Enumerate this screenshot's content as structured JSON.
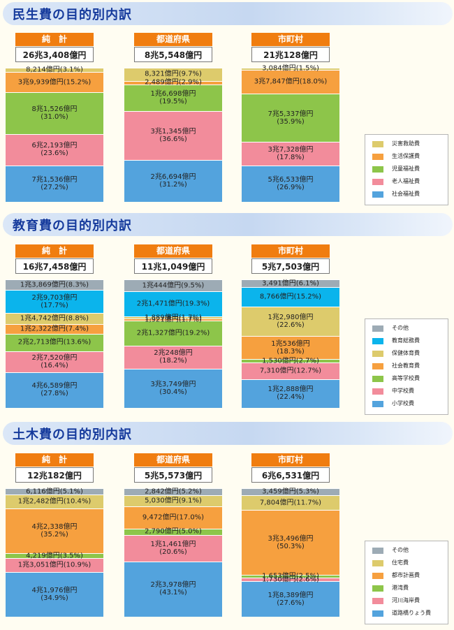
{
  "colors": {
    "gray": "#9dabb5",
    "blue": "#53a3dd",
    "cyan": "#0bb4ec",
    "yellow": "#ddcb6c",
    "orange": "#f6a03f",
    "green": "#8dc54a",
    "pink": "#f28c9b"
  },
  "chart_data": [
    {
      "type": "bar",
      "title": "民生費の目的別内訳",
      "categories": [
        "純　計",
        "都道府県",
        "市町村"
      ],
      "totals": [
        "26兆3,408億円",
        "8兆5,548億円",
        "21兆128億円"
      ],
      "series": [
        {
          "name": "社会福祉費",
          "color": "blue",
          "values": [
            27.2,
            31.2,
            26.9
          ],
          "labels": [
            "7兆1,536億円\n(27.2%)",
            "2兆6,694億円\n(31.2%)",
            "5兆6,533億円\n(26.9%)"
          ]
        },
        {
          "name": "老人福祉費",
          "color": "pink",
          "values": [
            23.6,
            36.6,
            17.8
          ],
          "labels": [
            "6兆2,193億円\n(23.6%)",
            "3兆1,345億円\n(36.6%)",
            "3兆7,328億円\n(17.8%)"
          ]
        },
        {
          "name": "児童福祉費",
          "color": "green",
          "values": [
            31.0,
            19.5,
            35.9
          ],
          "labels": [
            "8兆1,526億円\n(31.0%)",
            "1兆6,698億円\n(19.5%)",
            "7兆5,337億円\n(35.9%)"
          ]
        },
        {
          "name": "生活保護費",
          "color": "orange",
          "values": [
            15.2,
            2.9,
            18.0
          ],
          "labels": [
            "3兆9,939億円(15.2%)",
            "2,489億円(2.9%)",
            "3兆7,847億円(18.0%)"
          ]
        },
        {
          "name": "災害救助費",
          "color": "yellow",
          "values": [
            3.1,
            9.7,
            1.5
          ],
          "labels": [
            "8,214億円(3.1%)",
            "8,321億円(9.7%)",
            "3,084億円(1.5%)"
          ]
        }
      ],
      "legend_order": [
        "災害救助費",
        "生活保護費",
        "児童福祉費",
        "老人福祉費",
        "社会福祉費"
      ]
    },
    {
      "type": "bar",
      "title": "教育費の目的別内訳",
      "categories": [
        "純　計",
        "都道府県",
        "市町村"
      ],
      "totals": [
        "16兆7,458億円",
        "11兆1,049億円",
        "5兆7,503億円"
      ],
      "series": [
        {
          "name": "小学校費",
          "color": "blue",
          "values": [
            27.8,
            30.4,
            22.4
          ],
          "labels": [
            "4兆6,589億円\n(27.8%)",
            "3兆3,749億円\n(30.4%)",
            "1兆2,888億円\n(22.4%)"
          ]
        },
        {
          "name": "中学校費",
          "color": "pink",
          "values": [
            16.4,
            18.2,
            12.7
          ],
          "labels": [
            "2兆7,520億円\n(16.4%)",
            "2兆248億円\n(18.2%)",
            "7,310億円(12.7%)"
          ]
        },
        {
          "name": "高等学校費",
          "color": "green",
          "values": [
            13.6,
            19.2,
            2.7
          ],
          "labels": [
            "2兆2,713億円(13.6%)",
            "2兆1,327億円(19.2%)",
            "1,530億円(2.7%)"
          ]
        },
        {
          "name": "社会教育費",
          "color": "orange",
          "values": [
            7.4,
            1.7,
            18.3
          ],
          "labels": [
            "1兆2,322億円(7.4%)",
            "1,921億円(1.7%)",
            "1兆536億円\n(18.3%)"
          ]
        },
        {
          "name": "保健体育費",
          "color": "yellow",
          "values": [
            8.8,
            1.7,
            22.6
          ],
          "labels": [
            "1兆4,742億円(8.8%)",
            "1,889億円(1.7%)",
            "1兆2,980億円\n(22.6%)"
          ]
        },
        {
          "name": "教育総務費",
          "color": "cyan",
          "values": [
            17.7,
            19.3,
            15.2
          ],
          "labels": [
            "2兆9,703億円\n(17.7%)",
            "2兆1,471億円(19.3%)",
            "8,766億円(15.2%)"
          ]
        },
        {
          "name": "その他",
          "color": "gray",
          "values": [
            8.3,
            9.5,
            6.1
          ],
          "labels": [
            "1兆3,869億円(8.3%)",
            "1兆444億円(9.5%)",
            "3,491億円(6.1%)"
          ]
        }
      ],
      "legend_order": [
        "その他",
        "教育総務費",
        "保健体育費",
        "社会教育費",
        "高等学校費",
        "中学校費",
        "小学校費"
      ]
    },
    {
      "type": "bar",
      "title": "土木費の目的別内訳",
      "categories": [
        "純　計",
        "都道府県",
        "市町村"
      ],
      "totals": [
        "12兆182億円",
        "5兆5,573億円",
        "6兆6,531億円"
      ],
      "series": [
        {
          "name": "道路橋りょう費",
          "color": "blue",
          "values": [
            34.9,
            43.1,
            27.6
          ],
          "labels": [
            "4兆1,976億円\n(34.9%)",
            "2兆3,978億円\n(43.1%)",
            "1兆8,389億円\n(27.6%)"
          ]
        },
        {
          "name": "河川海岸費",
          "color": "pink",
          "values": [
            10.9,
            20.6,
            2.6
          ],
          "labels": [
            "1兆3,051億円(10.9%)",
            "1兆1,461億円\n(20.6%)",
            "1,730億円(2.6%)"
          ]
        },
        {
          "name": "港湾費",
          "color": "green",
          "values": [
            3.5,
            5.0,
            2.5
          ],
          "labels": [
            "4,219億円(3.5%)",
            "2,790億円(5.0%)",
            "1,653億円(2.5%)"
          ]
        },
        {
          "name": "都市計画費",
          "color": "orange",
          "values": [
            35.2,
            17.0,
            50.3
          ],
          "labels": [
            "4兆2,338億円\n(35.2%)",
            "9,472億円(17.0%)",
            "3兆3,496億円\n(50.3%)"
          ]
        },
        {
          "name": "住宅費",
          "color": "yellow",
          "values": [
            10.4,
            9.1,
            11.7
          ],
          "labels": [
            "1兆2,482億円(10.4%)",
            "5,030億円(9.1%)",
            "7,804億円(11.7%)"
          ]
        },
        {
          "name": "その他",
          "color": "gray",
          "values": [
            5.1,
            5.2,
            5.3
          ],
          "labels": [
            "6,116億円(5.1%)",
            "2,842億円(5.2%)",
            "3,459億円(5.3%)"
          ]
        }
      ],
      "legend_order": [
        "その他",
        "住宅費",
        "都市計画費",
        "港湾費",
        "河川海岸費",
        "道路橋りょう費"
      ]
    }
  ]
}
